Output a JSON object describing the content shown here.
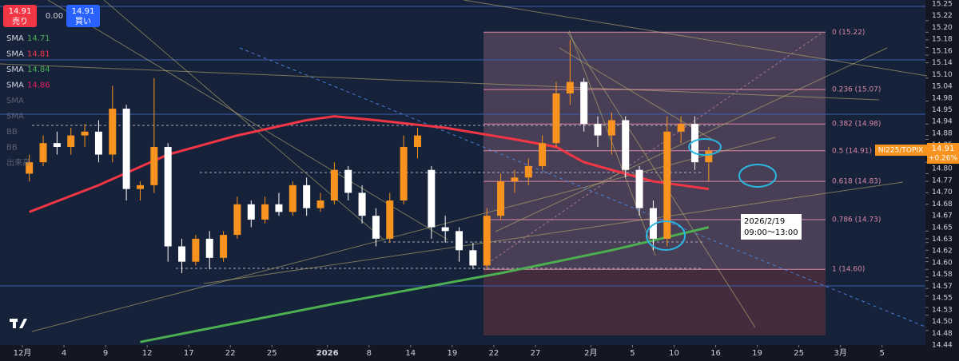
{
  "chart_data": {
    "type": "candlestick",
    "symbol": "NI225/TOPIX",
    "last_price": 14.91,
    "change": "+0.26%",
    "sell_price": 14.91,
    "sell_label": "売り",
    "spread": "0.00",
    "buy_price": 14.91,
    "buy_label": "買い",
    "up_color": "#f7931e",
    "down_color": "#ffffff",
    "ylim": [
      14.4,
      15.3
    ],
    "yticks": [
      15.25,
      15.22,
      {
        "value": 15.2,
        "label": "15.20"
      },
      15.18,
      15.16,
      15.14,
      {
        "value": 15.1,
        "label": "15.10"
      },
      15.04,
      14.98,
      14.95,
      14.94,
      14.88,
      14.85,
      14.83,
      {
        "value": 14.8,
        "label": "14.80"
      },
      14.77,
      {
        "value": 14.7,
        "label": "14.70"
      },
      14.68,
      14.67,
      14.65,
      14.63,
      14.62,
      {
        "value": 14.6,
        "label": "14.60"
      },
      14.58,
      14.57,
      14.55,
      14.53,
      {
        "value": 14.5,
        "label": "14.50"
      },
      14.48,
      14.44
    ],
    "xlim": [
      0,
      65
    ],
    "xticks": [
      {
        "value": 0,
        "label": "12月"
      },
      {
        "value": 3,
        "label": "4"
      },
      {
        "value": 6,
        "label": "9"
      },
      {
        "value": 9,
        "label": "12"
      },
      {
        "value": 12,
        "label": "17"
      },
      {
        "value": 15,
        "label": "22"
      },
      {
        "value": 18,
        "label": "25"
      },
      {
        "value": 22,
        "label": "2026"
      },
      {
        "value": 25,
        "label": "8"
      },
      {
        "value": 28,
        "label": "14"
      },
      {
        "value": 31,
        "label": "19"
      },
      {
        "value": 34,
        "label": "22"
      },
      {
        "value": 37,
        "label": "27"
      },
      {
        "value": 41,
        "label": "2月"
      },
      {
        "value": 44,
        "label": "5"
      },
      {
        "value": 47,
        "label": "10"
      },
      {
        "value": 50,
        "label": "16"
      },
      {
        "value": 53,
        "label": "19"
      },
      {
        "value": 56,
        "label": "25"
      },
      {
        "value": 59,
        "label": "3月"
      },
      {
        "value": 62,
        "label": "5"
      }
    ],
    "candles": {
      "open": [
        14.85,
        14.88,
        14.93,
        14.92,
        14.95,
        14.96,
        14.9,
        15.02,
        14.81,
        14.82,
        14.92,
        14.66,
        14.62,
        14.68,
        14.63,
        14.69,
        14.77,
        14.73,
        14.77,
        14.75,
        14.82,
        14.76,
        14.78,
        14.86,
        14.8,
        14.74,
        14.68,
        14.78,
        14.92,
        14.86,
        14.71,
        14.7,
        14.65,
        14.61,
        14.74,
        14.83,
        14.84,
        14.87,
        14.93,
        15.06,
        15.09,
        14.98,
        14.95,
        14.99,
        14.86,
        14.76,
        14.68,
        14.96,
        14.98,
        14.88
      ],
      "high": [
        14.9,
        14.95,
        14.96,
        14.97,
        14.98,
        14.99,
        15.08,
        15.03,
        14.83,
        15.1,
        14.93,
        14.68,
        14.69,
        14.7,
        14.7,
        14.79,
        14.78,
        14.79,
        14.8,
        14.83,
        14.84,
        14.8,
        14.88,
        14.87,
        14.82,
        14.76,
        14.8,
        14.95,
        14.97,
        14.87,
        14.74,
        14.71,
        14.67,
        14.76,
        14.85,
        14.86,
        14.89,
        14.95,
        15.09,
        15.2,
        15.1,
        15.0,
        15.01,
        15.0,
        14.87,
        14.78,
        15.0,
        15.0,
        15.0,
        14.92
      ],
      "low": [
        14.83,
        14.87,
        14.9,
        14.9,
        14.92,
        14.88,
        14.88,
        14.78,
        14.78,
        14.8,
        14.62,
        14.59,
        14.61,
        14.6,
        14.62,
        14.68,
        14.71,
        14.72,
        14.74,
        14.74,
        14.74,
        14.75,
        14.77,
        14.78,
        14.72,
        14.66,
        14.67,
        14.77,
        14.89,
        14.68,
        14.67,
        14.62,
        14.6,
        14.6,
        14.73,
        14.8,
        14.82,
        14.86,
        14.92,
        15.03,
        14.96,
        14.92,
        14.9,
        14.84,
        14.74,
        14.65,
        14.66,
        14.93,
        14.86,
        14.83
      ],
      "close": [
        14.88,
        14.93,
        14.92,
        14.95,
        14.96,
        14.9,
        15.02,
        14.81,
        14.82,
        14.92,
        14.66,
        14.62,
        14.68,
        14.63,
        14.69,
        14.77,
        14.73,
        14.77,
        14.75,
        14.82,
        14.76,
        14.78,
        14.86,
        14.8,
        14.74,
        14.68,
        14.78,
        14.92,
        14.95,
        14.71,
        14.7,
        14.65,
        14.61,
        14.74,
        14.83,
        14.84,
        14.87,
        14.93,
        15.06,
        15.09,
        14.98,
        14.95,
        14.99,
        14.86,
        14.76,
        14.68,
        14.96,
        14.98,
        14.88,
        14.91
      ]
    },
    "series": [
      {
        "name": "SMA",
        "value": 14.71,
        "color": "#4caf50",
        "width": 3,
        "x": [
          8,
          15,
          22,
          28,
          34,
          42,
          49
        ],
        "values": [
          14.41,
          14.46,
          14.51,
          14.55,
          14.59,
          14.65,
          14.71
        ]
      },
      {
        "name": "SMA",
        "value": 14.81,
        "color": "#f23645",
        "width": 3,
        "x": [
          0,
          5,
          10,
          15,
          20,
          22,
          25,
          30,
          35,
          38,
          40,
          45,
          49
        ],
        "values": [
          14.75,
          14.82,
          14.9,
          14.95,
          14.99,
          15.0,
          14.99,
          14.97,
          14.94,
          14.92,
          14.88,
          14.83,
          14.81
        ]
      },
      {
        "name": "SMA",
        "value": 14.84,
        "color": "#4caf50"
      },
      {
        "name": "SMA",
        "value": 14.86,
        "color": "#e91e63"
      }
    ],
    "hidden_indicators": [
      "SMA",
      "SMA",
      "BB",
      "BB",
      "出来高"
    ],
    "fib_levels": [
      {
        "label": "0 (15.22)",
        "price": 15.22
      },
      {
        "label": "0.236 (15.07)",
        "price": 15.07
      },
      {
        "label": "0.382 (14.98)",
        "price": 14.98
      },
      {
        "label": "0.5 (14.91)",
        "price": 14.91
      },
      {
        "label": "0.618 (14.83)",
        "price": 14.83
      },
      {
        "label": "0.786 (14.73)",
        "price": 14.73
      },
      {
        "label": "1 (14.60)",
        "price": 14.6
      }
    ],
    "annotation": [
      "2026/2/19",
      "09:00〜13:00"
    ]
  }
}
